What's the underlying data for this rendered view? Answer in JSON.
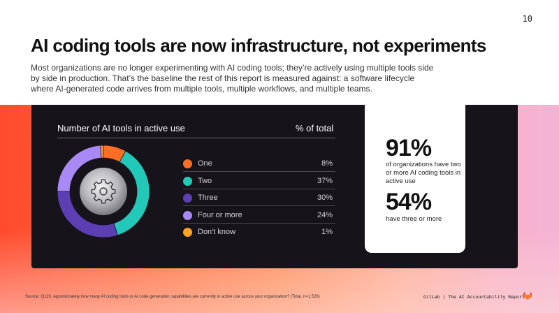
{
  "page": {
    "number": "10",
    "headline": "AI coding tools are now infrastructure, not experiments",
    "lede": "Most organizations are no longer experimenting with AI coding tools; they’re actively using multiple tools side by side in production. That’s the baseline the rest of this report is measured against: a software lifecycle where AI-generated code arrives from multiple tools, multiple workflows, and multiple teams."
  },
  "chart_data": {
    "type": "pie",
    "title": "Number of AI tools in active use",
    "value_header": "% of total",
    "unit": "%",
    "center_icon": "gear-icon",
    "slices": [
      {
        "label": "One",
        "value": 8,
        "display": "8%",
        "color": "#fc6d26"
      },
      {
        "label": "Two",
        "value": 37,
        "display": "37%",
        "color": "#22c9b8"
      },
      {
        "label": "Three",
        "value": 30,
        "display": "30%",
        "color": "#5b3fb3"
      },
      {
        "label": "Four or more",
        "value": 24,
        "display": "24%",
        "color": "#a989f5"
      },
      {
        "label": "Don't know",
        "value": 1,
        "display": "1%",
        "color": "#fca326"
      }
    ]
  },
  "stats": [
    {
      "value": "91%",
      "text": "of organizations have two or more AI coding tools in active use"
    },
    {
      "value": "54%",
      "text": "have three or more"
    }
  ],
  "footer": {
    "source": "Source: Q120. Approximately how many AI coding tools or AI code generation capabilities are currently in active use across your organization? (Total, n=1,528)",
    "brand": "GitLab | The AI Accountability Report",
    "logo_icon": "gitlab-tanuki-icon"
  }
}
